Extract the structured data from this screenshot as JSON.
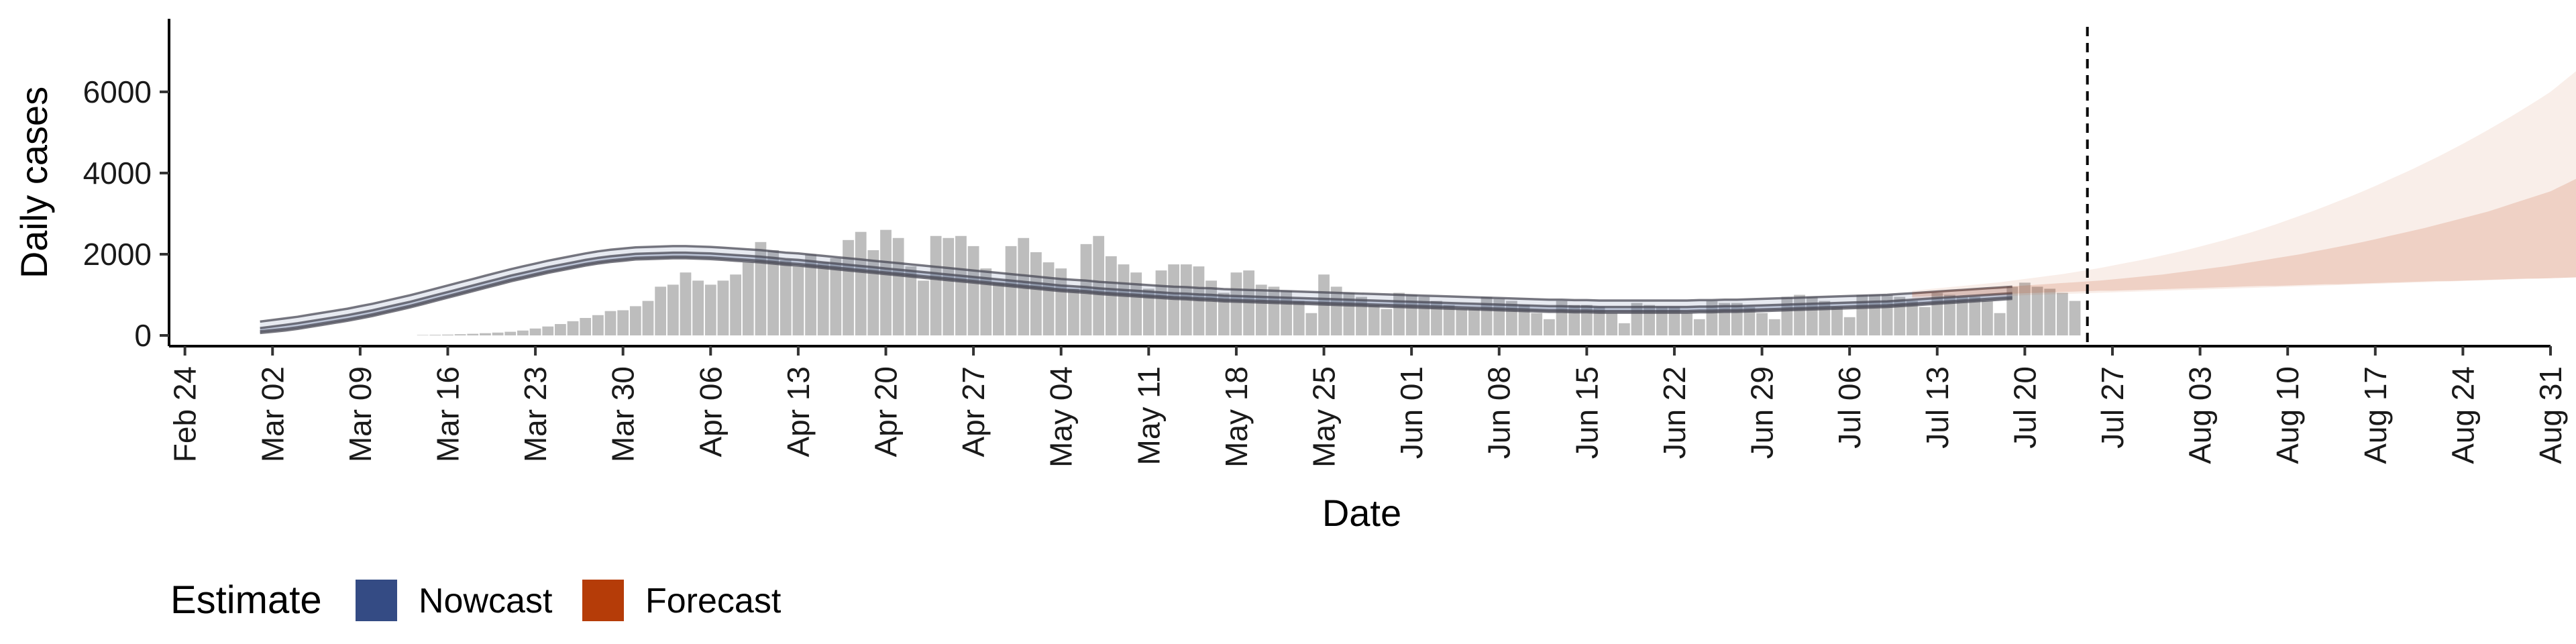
{
  "chart_data": {
    "type": "bar",
    "ylabel": "Daily cases",
    "xlabel": "Date",
    "ylim": [
      0,
      7800
    ],
    "yticks": [
      0,
      2000,
      4000,
      6000
    ],
    "x_axis": {
      "type": "date",
      "start": "2020-02-23",
      "end": "2020-08-31",
      "ticks": [
        "2020-02-24",
        "2020-03-02",
        "2020-03-09",
        "2020-03-16",
        "2020-03-23",
        "2020-03-30",
        "2020-04-06",
        "2020-04-13",
        "2020-04-20",
        "2020-04-27",
        "2020-05-04",
        "2020-05-11",
        "2020-05-18",
        "2020-05-25",
        "2020-06-01",
        "2020-06-08",
        "2020-06-15",
        "2020-06-22",
        "2020-06-29",
        "2020-07-06",
        "2020-07-13",
        "2020-07-20",
        "2020-07-27",
        "2020-08-03",
        "2020-08-10",
        "2020-08-17",
        "2020-08-24",
        "2020-08-31"
      ],
      "tick_labels": [
        "Feb 24",
        "Mar 02",
        "Mar 09",
        "Mar 16",
        "Mar 23",
        "Mar 30",
        "Apr 06",
        "Apr 13",
        "Apr 20",
        "Apr 27",
        "May 04",
        "May 11",
        "May 18",
        "May 25",
        "Jun 01",
        "Jun 08",
        "Jun 15",
        "Jun 22",
        "Jun 29",
        "Jul 06",
        "Jul 13",
        "Jul 20",
        "Jul 27",
        "Aug 03",
        "Aug 10",
        "Aug 17",
        "Aug 24",
        "Aug 31"
      ]
    },
    "grid": false,
    "vline_date": "2020-07-25",
    "colors": {
      "bars": "#bdbdbd",
      "nowcast": "#3c5488",
      "forecast": "#b8410f",
      "axis": "#000000"
    },
    "legend": {
      "position": "bottom-left",
      "title": "Estimate",
      "items": [
        {
          "label": "Nowcast",
          "color": "#344b84"
        },
        {
          "label": "Forecast",
          "color": "#b53c08"
        }
      ]
    },
    "bars": {
      "start": "2020-03-14",
      "values": [
        10,
        15,
        20,
        30,
        40,
        55,
        70,
        90,
        120,
        170,
        220,
        280,
        350,
        430,
        500,
        600,
        620,
        720,
        850,
        1200,
        1250,
        1550,
        1350,
        1250,
        1350,
        1500,
        1800,
        2300,
        2100,
        1850,
        1700,
        2000,
        1800,
        1900,
        2350,
        2550,
        2100,
        2600,
        2400,
        1700,
        1350,
        2450,
        2400,
        2450,
        2200,
        1650,
        1300,
        2200,
        2400,
        2050,
        1800,
        1650,
        1150,
        2250,
        2450,
        1950,
        1750,
        1550,
        1150,
        1600,
        1750,
        1750,
        1700,
        1350,
        1050,
        1550,
        1600,
        1250,
        1200,
        1100,
        850,
        550,
        1500,
        1200,
        1050,
        950,
        750,
        650,
        1050,
        1000,
        950,
        850,
        750,
        650,
        650,
        950,
        900,
        850,
        750,
        550,
        400,
        850,
        750,
        750,
        700,
        550,
        300,
        800,
        750,
        700,
        700,
        550,
        400,
        850,
        800,
        800,
        700,
        550,
        400,
        950,
        1000,
        950,
        850,
        700,
        450,
        1000,
        1000,
        1000,
        950,
        850,
        700,
        1050,
        1000,
        950,
        950,
        850,
        550,
        1200,
        1300,
        1200,
        1150,
        1050,
        850
      ]
    },
    "series": [
      {
        "name": "Nowcast",
        "band_start": "2020-03-01",
        "inner_lower": [
          100,
          130,
          160,
          200,
          250,
          300,
          350,
          400,
          460,
          520,
          590,
          660,
          730,
          810,
          890,
          970,
          1050,
          1130,
          1210,
          1290,
          1370,
          1440,
          1510,
          1580,
          1640,
          1700,
          1760,
          1810,
          1850,
          1880,
          1910,
          1920,
          1930,
          1940,
          1940,
          1930,
          1920,
          1900,
          1880,
          1860,
          1840,
          1810,
          1780,
          1760,
          1730,
          1700,
          1670,
          1640,
          1610,
          1580,
          1550,
          1520,
          1490,
          1460,
          1430,
          1400,
          1370,
          1340,
          1310,
          1280,
          1250,
          1220,
          1190,
          1160,
          1130,
          1110,
          1090,
          1060,
          1040,
          1020,
          1000,
          980,
          960,
          940,
          930,
          910,
          900,
          880,
          870,
          860,
          850,
          840,
          830,
          820,
          810,
          800,
          790,
          780,
          770,
          760,
          750,
          740,
          730,
          720,
          710,
          700,
          690,
          680,
          670,
          660,
          650,
          640,
          630,
          620,
          620,
          610,
          610,
          600,
          600,
          600,
          600,
          600,
          600,
          600,
          600,
          610,
          610,
          620,
          620,
          630,
          640,
          650,
          660,
          670,
          680,
          690,
          700,
          710,
          720,
          730,
          740,
          760,
          780,
          800,
          820,
          840,
          860,
          880,
          900,
          920,
          940
        ],
        "inner_upper": [
          180,
          220,
          260,
          300,
          350,
          400,
          450,
          500,
          560,
          620,
          690,
          760,
          830,
          910,
          990,
          1070,
          1150,
          1230,
          1310,
          1390,
          1470,
          1540,
          1610,
          1680,
          1740,
          1800,
          1860,
          1910,
          1950,
          1980,
          2010,
          2020,
          2030,
          2040,
          2040,
          2030,
          2020,
          2000,
          1980,
          1960,
          1940,
          1910,
          1880,
          1860,
          1830,
          1800,
          1770,
          1740,
          1710,
          1680,
          1650,
          1620,
          1590,
          1560,
          1530,
          1500,
          1470,
          1440,
          1410,
          1380,
          1350,
          1320,
          1290,
          1260,
          1230,
          1210,
          1190,
          1160,
          1140,
          1120,
          1100,
          1080,
          1060,
          1040,
          1030,
          1010,
          1000,
          980,
          970,
          960,
          950,
          940,
          930,
          920,
          910,
          900,
          890,
          880,
          870,
          860,
          850,
          840,
          830,
          820,
          810,
          800,
          790,
          780,
          770,
          760,
          750,
          740,
          730,
          720,
          720,
          710,
          710,
          700,
          700,
          700,
          700,
          700,
          700,
          700,
          700,
          710,
          710,
          720,
          720,
          730,
          740,
          750,
          760,
          770,
          780,
          790,
          800,
          810,
          820,
          830,
          840,
          860,
          880,
          900,
          920,
          940,
          960,
          980,
          1000,
          1020,
          1040
        ],
        "outer_lower": [
          60,
          90,
          120,
          160,
          210,
          260,
          310,
          360,
          420,
          480,
          550,
          620,
          690,
          770,
          850,
          930,
          1010,
          1090,
          1170,
          1250,
          1330,
          1400,
          1470,
          1540,
          1600,
          1660,
          1720,
          1770,
          1810,
          1840,
          1870,
          1880,
          1890,
          1900,
          1900,
          1890,
          1880,
          1860,
          1840,
          1820,
          1800,
          1770,
          1740,
          1720,
          1690,
          1660,
          1630,
          1600,
          1570,
          1540,
          1510,
          1480,
          1450,
          1420,
          1390,
          1360,
          1330,
          1300,
          1270,
          1240,
          1210,
          1180,
          1150,
          1120,
          1090,
          1070,
          1050,
          1020,
          1000,
          980,
          960,
          940,
          920,
          900,
          890,
          870,
          860,
          840,
          830,
          820,
          810,
          800,
          790,
          780,
          770,
          760,
          750,
          740,
          730,
          720,
          710,
          700,
          690,
          680,
          670,
          660,
          650,
          640,
          630,
          620,
          610,
          600,
          590,
          580,
          580,
          570,
          570,
          560,
          560,
          560,
          560,
          560,
          560,
          560,
          560,
          570,
          570,
          580,
          580,
          590,
          600,
          610,
          620,
          630,
          640,
          650,
          660,
          670,
          680,
          690,
          700,
          720,
          740,
          760,
          780,
          800,
          820,
          840,
          860,
          880,
          900
        ],
        "outer_upper": [
          340,
          380,
          420,
          460,
          510,
          560,
          610,
          660,
          720,
          780,
          850,
          920,
          990,
          1070,
          1150,
          1230,
          1310,
          1390,
          1470,
          1550,
          1630,
          1700,
          1770,
          1840,
          1900,
          1960,
          2020,
          2070,
          2110,
          2140,
          2170,
          2180,
          2190,
          2200,
          2200,
          2190,
          2180,
          2160,
          2140,
          2120,
          2100,
          2070,
          2040,
          2020,
          1990,
          1960,
          1930,
          1900,
          1870,
          1840,
          1810,
          1780,
          1750,
          1720,
          1690,
          1660,
          1630,
          1600,
          1570,
          1540,
          1510,
          1480,
          1450,
          1420,
          1390,
          1370,
          1350,
          1320,
          1300,
          1280,
          1260,
          1240,
          1220,
          1200,
          1190,
          1170,
          1160,
          1140,
          1130,
          1120,
          1110,
          1100,
          1090,
          1080,
          1070,
          1060,
          1050,
          1040,
          1030,
          1020,
          1010,
          1000,
          990,
          980,
          970,
          960,
          950,
          940,
          930,
          920,
          910,
          900,
          890,
          880,
          880,
          870,
          870,
          860,
          860,
          860,
          860,
          860,
          860,
          860,
          860,
          870,
          870,
          880,
          880,
          890,
          900,
          910,
          920,
          930,
          940,
          950,
          960,
          970,
          980,
          990,
          1000,
          1020,
          1040,
          1060,
          1080,
          1100,
          1120,
          1140,
          1160,
          1180,
          1200
        ]
      },
      {
        "name": "Forecast",
        "band_start": "2020-07-11",
        "inner_lower": [
          950,
          960,
          970,
          980,
          990,
          1000,
          1010,
          1020,
          1030,
          1040,
          1050,
          1060,
          1070,
          1080,
          1090,
          1100,
          1100,
          1110,
          1120,
          1130,
          1140,
          1150,
          1160,
          1170,
          1180,
          1190,
          1200,
          1210,
          1220,
          1220,
          1230,
          1240,
          1250,
          1260,
          1260,
          1270,
          1280,
          1290,
          1300,
          1310,
          1320,
          1330,
          1340,
          1340,
          1350,
          1360,
          1370,
          1380,
          1390,
          1400,
          1400,
          1410,
          1420,
          1430,
          1440,
          1450,
          1460,
          1460
        ],
        "inner_upper": [
          1050,
          1070,
          1090,
          1110,
          1130,
          1150,
          1170,
          1190,
          1210,
          1230,
          1250,
          1270,
          1290,
          1310,
          1330,
          1350,
          1380,
          1410,
          1440,
          1470,
          1500,
          1540,
          1580,
          1620,
          1660,
          1700,
          1750,
          1800,
          1850,
          1900,
          1950,
          2000,
          2060,
          2120,
          2180,
          2240,
          2300,
          2370,
          2440,
          2510,
          2580,
          2650,
          2730,
          2810,
          2890,
          2970,
          3050,
          3150,
          3250,
          3350,
          3450,
          3550,
          3700,
          3850,
          4000,
          4100,
          4200,
          4300
        ],
        "outer_lower": [
          900,
          910,
          920,
          930,
          940,
          950,
          960,
          970,
          980,
          990,
          1000,
          1010,
          1020,
          1030,
          1040,
          1050,
          1060,
          1070,
          1080,
          1090,
          1100,
          1110,
          1120,
          1130,
          1140,
          1150,
          1160,
          1170,
          1180,
          1190,
          1200,
          1210,
          1220,
          1230,
          1240,
          1250,
          1260,
          1270,
          1280,
          1290,
          1300,
          1310,
          1320,
          1330,
          1340,
          1350,
          1360,
          1370,
          1380,
          1390,
          1400,
          1410,
          1420,
          1430,
          1440,
          1450,
          1460,
          1470
        ],
        "outer_upper": [
          1100,
          1130,
          1160,
          1190,
          1220,
          1250,
          1280,
          1310,
          1350,
          1390,
          1430,
          1470,
          1510,
          1560,
          1610,
          1660,
          1720,
          1780,
          1840,
          1900,
          1970,
          2040,
          2110,
          2190,
          2270,
          2350,
          2440,
          2530,
          2630,
          2730,
          2840,
          2950,
          3060,
          3180,
          3300,
          3420,
          3550,
          3680,
          3820,
          3960,
          4100,
          4250,
          4400,
          4560,
          4720,
          4890,
          5060,
          5240,
          5420,
          5610,
          5800,
          6000,
          6250,
          6500,
          6750,
          7000,
          7250,
          7500
        ]
      }
    ]
  }
}
